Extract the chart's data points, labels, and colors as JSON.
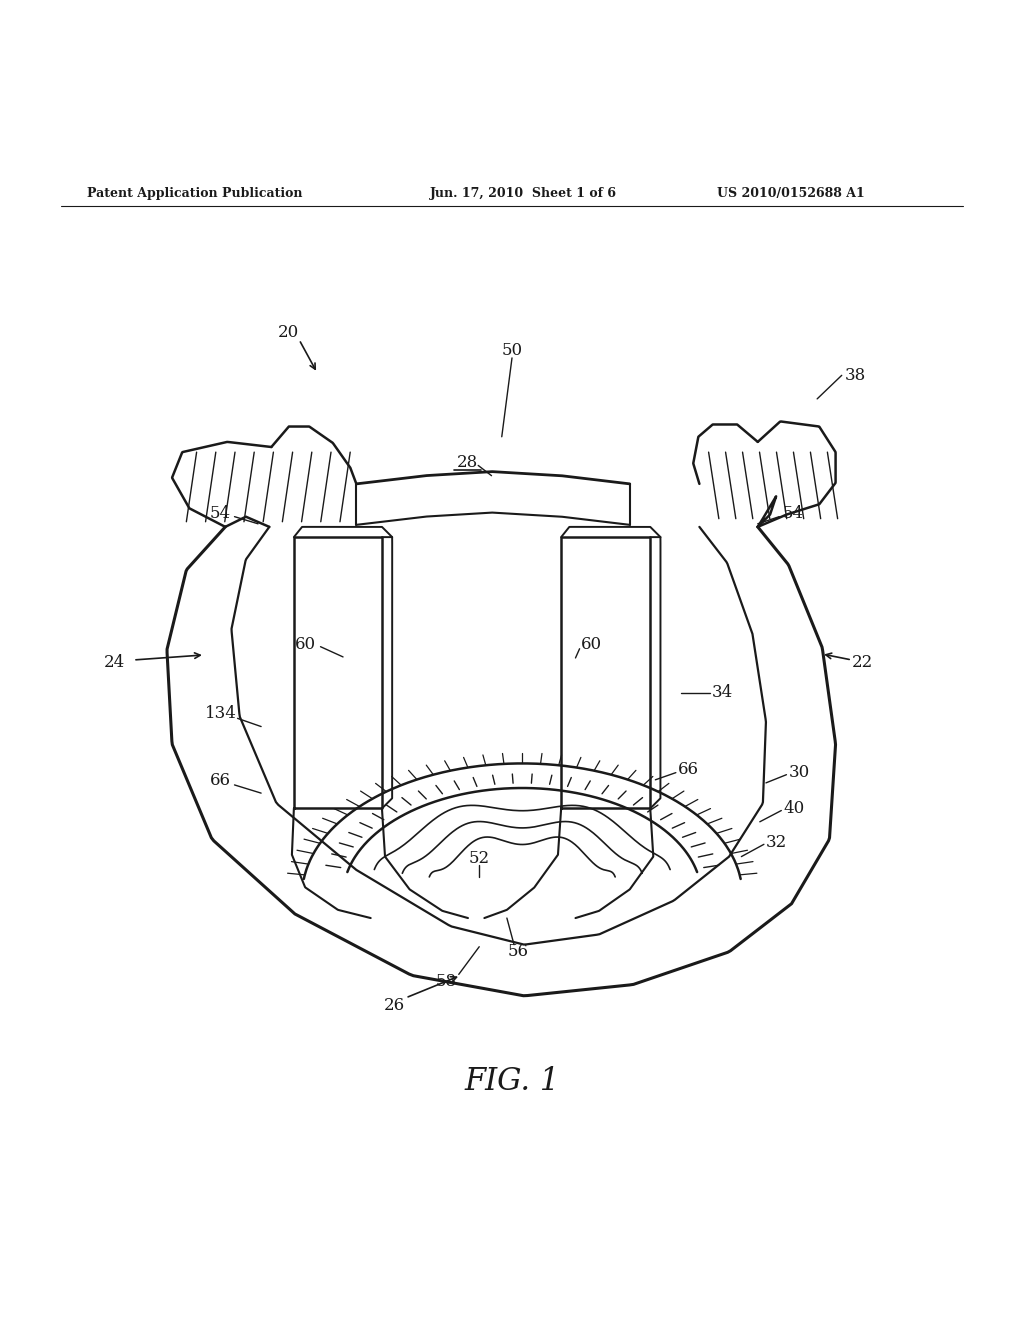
{
  "bg_color": "#ffffff",
  "header_left": "Patent Application Publication",
  "header_mid": "Jun. 17, 2010  Sheet 1 of 6",
  "header_right": "US 2010/0152688 A1",
  "fig_label": "FIG. 1",
  "line_color": "#1a1a1a",
  "text_color": "#1a1a1a",
  "label_fs": 12,
  "header_fs": 9
}
